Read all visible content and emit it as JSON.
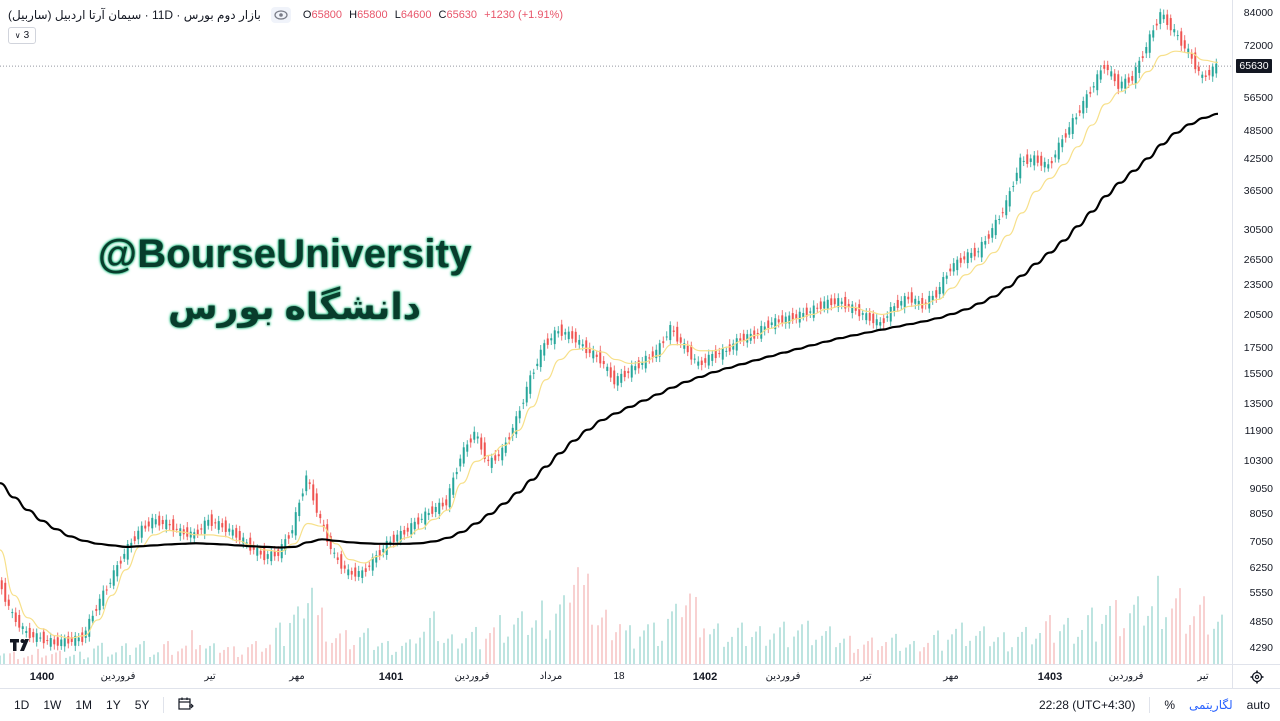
{
  "legend": {
    "symbol": "بازار دوم بورس · 11D · سیمان آرتا اردبیل (ساربیل)",
    "ohlc": {
      "o_label": "O",
      "o": "65800",
      "h_label": "H",
      "h": "65800",
      "l_label": "L",
      "l": "64600",
      "c_label": "C",
      "c": "65630",
      "change": "+1230 (+1.91%)"
    },
    "collapse_count": "3"
  },
  "watermark": {
    "handle": "@BourseUniversity",
    "persian": "دانشگاه بورس"
  },
  "price_axis": {
    "ticks": [
      "84000",
      "72000",
      "65630",
      "56500",
      "48500",
      "42500",
      "36500",
      "30500",
      "26500",
      "23500",
      "20500",
      "17500",
      "15500",
      "13500",
      "11900",
      "10300",
      "9050",
      "8050",
      "7050",
      "6250",
      "5550",
      "4850",
      "4290"
    ],
    "last_price": "65630"
  },
  "time_axis": {
    "labels": [
      "1400",
      "فروردین",
      "تیر",
      "مهر",
      "1401",
      "فروردین",
      "مرداد",
      "18",
      "1402",
      "فروردین",
      "تیر",
      "مهر",
      "1403",
      "فروردین",
      "تیر"
    ]
  },
  "bottom_bar": {
    "timeframes": [
      "1D",
      "1W",
      "1M",
      "1Y",
      "5Y"
    ],
    "time": "22:28 (UTC+4:30)",
    "percent": "%",
    "log": "لگاریتمی",
    "auto": "auto"
  },
  "colors": {
    "up": "#26a69a",
    "down": "#ef5350",
    "ma_fast": "#f7e08a",
    "ma_slow": "#000000",
    "text": "#131722"
  },
  "chart_data": {
    "type": "candlestick",
    "scale": "log",
    "ylim": [
      4100,
      87000
    ],
    "series": [
      {
        "name": "price",
        "values": [
          5900,
          5000,
          4600,
          4500,
          4400,
          4450,
          4500,
          5200,
          5900,
          6700,
          7400,
          7800,
          7700,
          7400,
          7300,
          7800,
          7600,
          7300,
          6900,
          6600,
          6700,
          7500,
          9600,
          7800,
          6600,
          6100,
          6100,
          6600,
          7100,
          7400,
          7800,
          8200,
          8500,
          10500,
          11800,
          10200,
          10800,
          12500,
          15200,
          17800,
          19000,
          18500,
          17400,
          16600,
          15000,
          15700,
          16400,
          17200,
          19200,
          17600,
          16200,
          16900,
          17300,
          18300,
          18600,
          19600,
          20000,
          20300,
          20800,
          21600,
          21800,
          21100,
          20300,
          19600,
          21300,
          22200,
          21400,
          22600,
          25500,
          26800,
          27600,
          30500,
          34500,
          42000,
          42500,
          41000,
          46500,
          52000,
          58500,
          66000,
          60000,
          62000,
          72000,
          84000,
          77000,
          70000,
          62000,
          65630
        ]
      },
      {
        "name": "ma_fast",
        "values": [
          6800,
          5500,
          4950,
          4700,
          4550,
          4500,
          4550,
          4900,
          5500,
          6200,
          6900,
          7300,
          7450,
          7400,
          7300,
          7300,
          7250,
          7100,
          6950,
          6800,
          6750,
          7000,
          7700,
          7600,
          7000,
          6500,
          6400,
          6600,
          6900,
          7200,
          7500,
          7850,
          8200,
          9300,
          10300,
          10600,
          11100,
          11900,
          13300,
          15100,
          16600,
          17400,
          17500,
          17200,
          16600,
          16300,
          16400,
          16900,
          17800,
          17800,
          17300,
          17300,
          17600,
          18100,
          18600,
          19200,
          19700,
          20100,
          20500,
          21000,
          21300,
          21200,
          20800,
          20500,
          20800,
          21300,
          21500,
          22000,
          23200,
          24700,
          25900,
          27400,
          29700,
          33000,
          36500,
          38800,
          41400,
          45000,
          49800,
          55000,
          58200,
          60300,
          64000,
          69000,
          70400,
          69800,
          67500,
          66800
        ]
      },
      {
        "name": "ma_slow",
        "values": [
          9300,
          8700,
          8200,
          7800,
          7500,
          7250,
          7100,
          7000,
          6950,
          6900,
          6920,
          6950,
          6980,
          7000,
          7020,
          7000,
          6980,
          6950,
          6920,
          6900,
          6880,
          6900,
          7050,
          7150,
          7100,
          7050,
          7020,
          7000,
          7000,
          7000,
          7020,
          7080,
          7200,
          7400,
          7700,
          8050,
          8450,
          8900,
          9450,
          10050,
          10700,
          11350,
          11950,
          12500,
          12900,
          13300,
          13700,
          14100,
          14550,
          14950,
          15300,
          15650,
          15950,
          16250,
          16550,
          16850,
          17150,
          17450,
          17750,
          18050,
          18350,
          18600,
          18850,
          19100,
          19350,
          19600,
          19850,
          20150,
          20550,
          21000,
          21600,
          22300,
          23300,
          24600,
          26000,
          27400,
          29000,
          31000,
          33200,
          35700,
          38000,
          40200,
          42600,
          45500,
          48000,
          50000,
          51500,
          52500
        ]
      }
    ],
    "volume": [
      900,
      700,
      600,
      800,
      700,
      650,
      700,
      1200,
      900,
      1100,
      1400,
      1000,
      1300,
      1200,
      1800,
      1100,
      1200,
      1000,
      1300,
      1500,
      2200,
      3500,
      6500,
      3200,
      2000,
      1800,
      1900,
      1500,
      1300,
      1400,
      2500,
      2800,
      1800,
      2200,
      2100,
      2400,
      2600,
      2800,
      3100,
      3600,
      3900,
      7500,
      4800,
      3300,
      3400,
      2200,
      2600,
      2200,
      3200,
      5000,
      3800,
      2300,
      2100,
      2200,
      2300,
      2600,
      2400,
      2600,
      2300,
      2000,
      1800,
      1600,
      1500,
      1700,
      1600,
      1400,
      1800,
      1900,
      2300,
      2200,
      2000,
      1900,
      1800,
      2100,
      2400,
      2600,
      2800,
      2900,
      3200,
      3800,
      3400,
      3600,
      4100,
      5000,
      4300,
      3700,
      3600,
      3000
    ]
  }
}
